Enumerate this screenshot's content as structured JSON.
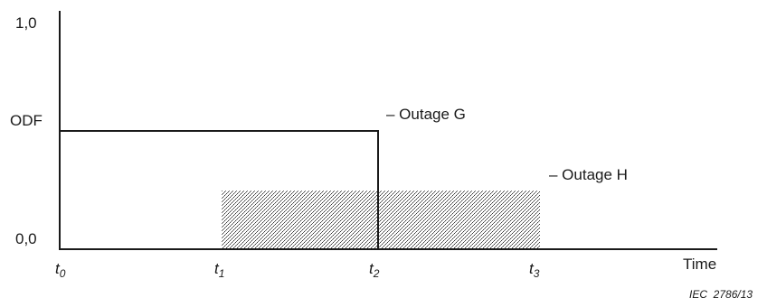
{
  "y_axis": {
    "top_label": "1,0",
    "name_label": "ODF",
    "bottom_label": "0,0"
  },
  "x_axis": {
    "name_label": "Time",
    "ticks": [
      {
        "base": "t",
        "sub": "0"
      },
      {
        "base": "t",
        "sub": "1"
      },
      {
        "base": "t",
        "sub": "2"
      },
      {
        "base": "t",
        "sub": "3"
      }
    ]
  },
  "outages": [
    {
      "label": "– Outage G",
      "style": "solid outline"
    },
    {
      "label": "– Outage H",
      "style": "stippled fill"
    }
  ],
  "reference": "IEC  2786/13"
}
